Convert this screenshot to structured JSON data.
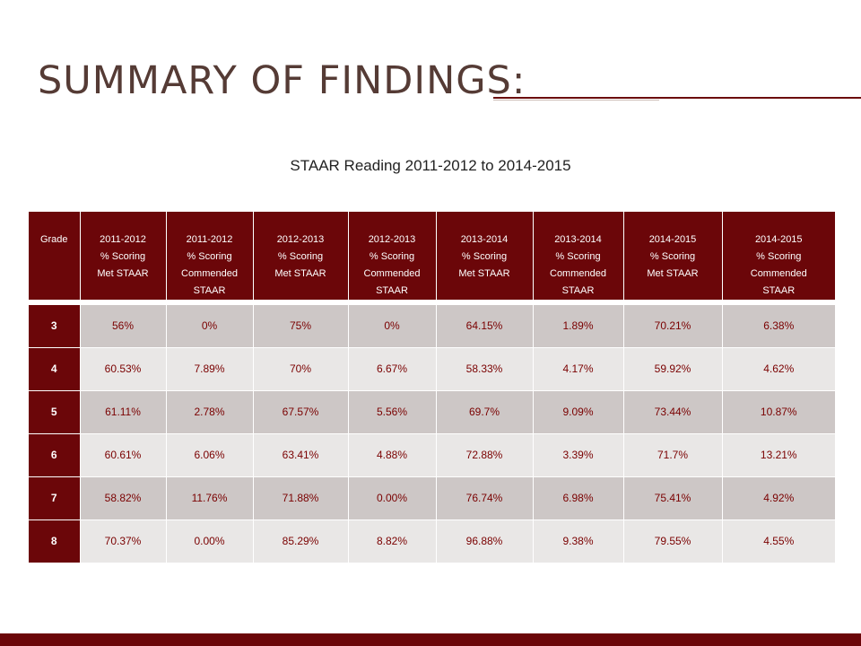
{
  "slide": {
    "title": "Summary of Findings:",
    "caption": "STAAR Reading 2011-2012 to 2014-2015"
  },
  "table": {
    "headers": [
      [
        "Grade"
      ],
      [
        "2011-2012",
        "% Scoring",
        "Met STAAR"
      ],
      [
        "2011-2012",
        "% Scoring",
        "Commended",
        "STAAR"
      ],
      [
        "2012-2013",
        "% Scoring",
        "Met STAAR"
      ],
      [
        "2012-2013",
        "% Scoring",
        "Commended",
        "STAAR"
      ],
      [
        "2013-2014",
        "% Scoring",
        "Met STAAR"
      ],
      [
        "2013-2014",
        "% Scoring",
        "Commended",
        "STAAR"
      ],
      [
        "2014-2015",
        "% Scoring",
        "Met STAAR"
      ],
      [
        "2014-2015",
        "% Scoring",
        "Commended",
        "STAAR"
      ]
    ],
    "rows": [
      [
        "3",
        "56%",
        "0%",
        "75%",
        "0%",
        "64.15%",
        "1.89%",
        "70.21%",
        "6.38%"
      ],
      [
        "4",
        "60.53%",
        "7.89%",
        "70%",
        "6.67%",
        "58.33%",
        "4.17%",
        "59.92%",
        "4.62%"
      ],
      [
        "5",
        "61.11%",
        "2.78%",
        "67.57%",
        "5.56%",
        "69.7%",
        "9.09%",
        "73.44%",
        "10.87%"
      ],
      [
        "6",
        "60.61%",
        "6.06%",
        "63.41%",
        "4.88%",
        "72.88%",
        "3.39%",
        "71.7%",
        "13.21%"
      ],
      [
        "7",
        "58.82%",
        "11.76%",
        "71.88%",
        "0.00%",
        "76.74%",
        "6.98%",
        "75.41%",
        "4.92%"
      ],
      [
        "8",
        "70.37%",
        "0.00%",
        "85.29%",
        "8.82%",
        "96.88%",
        "9.38%",
        "79.55%",
        "4.55%"
      ]
    ]
  },
  "colors": {
    "accent": "#6b0609",
    "row_shade_dark": "#cdc7c6",
    "row_shade_light": "#e9e7e6",
    "value_text": "#7a0000"
  }
}
